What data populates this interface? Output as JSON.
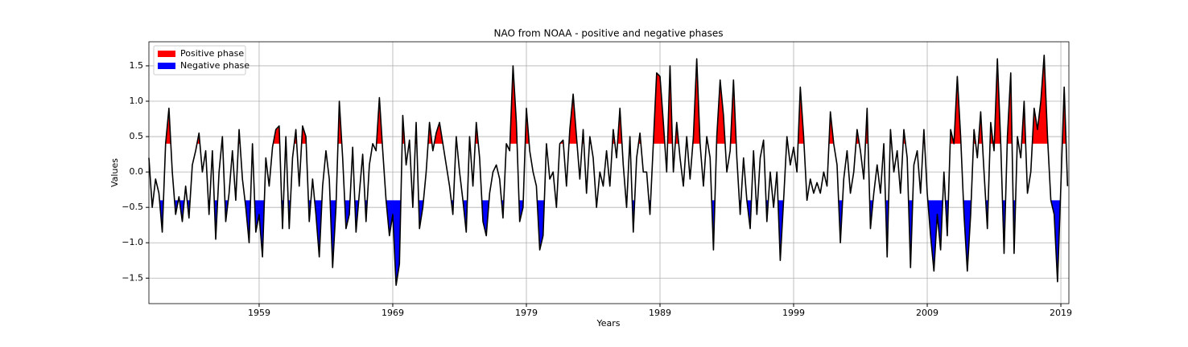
{
  "chart_data": {
    "type": "line",
    "title": "NAO from NOAA - positive and negative phases",
    "x_label": "Years",
    "y_label": "Values",
    "line_color": "#000000",
    "grid": true,
    "legend_loc": "upper left",
    "legend": [
      {
        "name": "Positive phase",
        "color": "#ff0000",
        "threshold": 0.4,
        "side": "above"
      },
      {
        "name": "Negative phase",
        "color": "#0000ff",
        "threshold": -0.4,
        "side": "below"
      }
    ],
    "xlim": [
      1950.75,
      2019.6
    ],
    "xticks": [
      1959,
      1969,
      1979,
      1989,
      1999,
      2009,
      2019
    ],
    "ylim": [
      -1.86,
      1.84
    ],
    "yticks": [
      {
        "value": -1.5,
        "label": "−1.5"
      },
      {
        "value": -1.0,
        "label": "−1.0"
      },
      {
        "value": -0.5,
        "label": "−0.5"
      },
      {
        "value": 0.0,
        "label": "0.0"
      },
      {
        "value": 0.5,
        "label": "0.5"
      },
      {
        "value": 1.0,
        "label": "1.0"
      },
      {
        "value": 1.5,
        "label": "1.5"
      }
    ],
    "x": [
      1950.75,
      1951,
      1951.25,
      1951.5,
      1951.75,
      1952,
      1952.25,
      1952.5,
      1952.75,
      1953,
      1953.25,
      1953.5,
      1953.75,
      1954,
      1954.25,
      1954.5,
      1954.75,
      1955,
      1955.25,
      1955.5,
      1955.75,
      1956,
      1956.25,
      1956.5,
      1956.75,
      1957,
      1957.25,
      1957.5,
      1957.75,
      1958,
      1958.25,
      1958.5,
      1958.75,
      1959,
      1959.25,
      1959.5,
      1959.75,
      1960,
      1960.25,
      1960.5,
      1960.75,
      1961,
      1961.25,
      1961.5,
      1961.75,
      1962,
      1962.25,
      1962.5,
      1962.75,
      1963,
      1963.25,
      1963.5,
      1963.75,
      1964,
      1964.25,
      1964.5,
      1964.75,
      1965,
      1965.25,
      1965.5,
      1965.75,
      1966,
      1966.25,
      1966.5,
      1966.75,
      1967,
      1967.25,
      1967.5,
      1967.75,
      1968,
      1968.25,
      1968.5,
      1968.75,
      1969,
      1969.25,
      1969.5,
      1969.75,
      1970,
      1970.25,
      1970.5,
      1970.75,
      1971,
      1971.25,
      1971.5,
      1971.75,
      1972,
      1972.25,
      1972.5,
      1972.75,
      1973,
      1973.25,
      1973.5,
      1973.75,
      1974,
      1974.25,
      1974.5,
      1974.75,
      1975,
      1975.25,
      1975.5,
      1975.75,
      1976,
      1976.25,
      1976.5,
      1976.75,
      1977,
      1977.25,
      1977.5,
      1977.75,
      1978,
      1978.25,
      1978.5,
      1978.75,
      1979,
      1979.25,
      1979.5,
      1979.75,
      1980,
      1980.25,
      1980.5,
      1980.75,
      1981,
      1981.25,
      1981.5,
      1981.75,
      1982,
      1982.25,
      1982.5,
      1982.75,
      1983,
      1983.25,
      1983.5,
      1983.75,
      1984,
      1984.25,
      1984.5,
      1984.75,
      1985,
      1985.25,
      1985.5,
      1985.75,
      1986,
      1986.25,
      1986.5,
      1986.75,
      1987,
      1987.25,
      1987.5,
      1987.75,
      1988,
      1988.25,
      1988.5,
      1988.75,
      1989,
      1989.25,
      1989.5,
      1989.75,
      1990,
      1990.25,
      1990.5,
      1990.75,
      1991,
      1991.25,
      1991.5,
      1991.75,
      1992,
      1992.25,
      1992.5,
      1992.75,
      1993,
      1993.25,
      1993.5,
      1993.75,
      1994,
      1994.25,
      1994.5,
      1994.75,
      1995,
      1995.25,
      1995.5,
      1995.75,
      1996,
      1996.25,
      1996.5,
      1996.75,
      1997,
      1997.25,
      1997.5,
      1997.75,
      1998,
      1998.25,
      1998.5,
      1998.75,
      1999,
      1999.25,
      1999.5,
      1999.75,
      2000,
      2000.25,
      2000.5,
      2000.75,
      2001,
      2001.25,
      2001.5,
      2001.75,
      2002,
      2002.25,
      2002.5,
      2002.75,
      2003,
      2003.25,
      2003.5,
      2003.75,
      2004,
      2004.25,
      2004.5,
      2004.75,
      2005,
      2005.25,
      2005.5,
      2005.75,
      2006,
      2006.25,
      2006.5,
      2006.75,
      2007,
      2007.25,
      2007.5,
      2007.75,
      2008,
      2008.25,
      2008.5,
      2008.75,
      2009,
      2009.25,
      2009.5,
      2009.75,
      2010,
      2010.25,
      2010.5,
      2010.75,
      2011,
      2011.25,
      2011.5,
      2011.75,
      2012,
      2012.25,
      2012.5,
      2012.75,
      2013,
      2013.25,
      2013.5,
      2013.75,
      2014,
      2014.25,
      2014.5,
      2014.75,
      2015,
      2015.25,
      2015.5,
      2015.75,
      2016,
      2016.25,
      2016.5,
      2016.75,
      2017,
      2017.25,
      2017.5,
      2017.75,
      2018,
      2018.25,
      2018.5,
      2018.75,
      2019,
      2019.25,
      2019.5
    ],
    "values": [
      0.2,
      -0.5,
      -0.1,
      -0.3,
      -0.85,
      0.4,
      0.9,
      0.0,
      -0.6,
      -0.35,
      -0.7,
      -0.2,
      -0.65,
      0.1,
      0.3,
      0.55,
      0.0,
      0.3,
      -0.6,
      0.3,
      -0.95,
      0.0,
      0.5,
      -0.7,
      -0.3,
      0.3,
      -0.4,
      0.6,
      -0.1,
      -0.5,
      -1.0,
      0.4,
      -0.85,
      -0.6,
      -1.2,
      0.2,
      -0.2,
      0.35,
      0.6,
      0.65,
      -0.8,
      0.5,
      -0.8,
      0.2,
      0.6,
      -0.2,
      0.65,
      0.5,
      -0.7,
      -0.1,
      -0.6,
      -1.2,
      -0.2,
      0.3,
      -0.1,
      -1.35,
      -0.5,
      1.0,
      0.2,
      -0.8,
      -0.6,
      0.35,
      -0.85,
      -0.3,
      0.25,
      -0.7,
      0.1,
      0.4,
      0.3,
      1.05,
      0.3,
      -0.4,
      -0.9,
      -0.6,
      -1.6,
      -1.3,
      0.8,
      0.1,
      0.45,
      -0.5,
      0.7,
      -0.8,
      -0.5,
      0.0,
      0.7,
      0.3,
      0.55,
      0.7,
      0.4,
      0.1,
      -0.2,
      -0.6,
      0.5,
      0.0,
      -0.4,
      -0.85,
      0.5,
      -0.2,
      0.7,
      0.2,
      -0.7,
      -0.9,
      -0.3,
      0.0,
      0.1,
      -0.1,
      -0.65,
      0.4,
      0.3,
      1.5,
      0.7,
      -0.7,
      -0.5,
      0.9,
      0.3,
      0.0,
      -0.2,
      -1.1,
      -0.9,
      0.4,
      -0.1,
      0.0,
      -0.5,
      0.4,
      0.45,
      -0.2,
      0.6,
      1.1,
      0.5,
      -0.1,
      0.6,
      -0.3,
      0.5,
      0.2,
      -0.5,
      0.0,
      -0.2,
      0.3,
      -0.2,
      0.6,
      0.2,
      0.9,
      0.1,
      -0.5,
      0.5,
      -0.85,
      0.2,
      0.55,
      0.0,
      0.0,
      -0.6,
      0.4,
      1.4,
      1.35,
      0.7,
      0.0,
      1.5,
      0.0,
      0.7,
      0.2,
      -0.2,
      0.5,
      -0.1,
      0.5,
      1.6,
      0.4,
      -0.2,
      0.5,
      0.2,
      -1.1,
      0.5,
      1.3,
      0.8,
      0.0,
      0.3,
      1.3,
      0.2,
      -0.6,
      0.2,
      -0.4,
      -0.8,
      0.3,
      -0.6,
      0.2,
      0.45,
      -0.7,
      0.0,
      -0.5,
      0.0,
      -1.25,
      -0.4,
      0.5,
      0.1,
      0.35,
      0.0,
      1.2,
      0.5,
      -0.4,
      -0.1,
      -0.3,
      -0.15,
      -0.3,
      0.0,
      -0.2,
      0.85,
      0.4,
      0.1,
      -1.0,
      -0.1,
      0.3,
      -0.3,
      0.0,
      0.6,
      0.3,
      -0.1,
      0.9,
      -0.8,
      -0.3,
      0.1,
      -0.3,
      0.4,
      -1.2,
      0.6,
      0.0,
      0.3,
      -0.3,
      0.6,
      0.2,
      -1.35,
      0.1,
      0.3,
      -0.3,
      0.6,
      -0.3,
      -0.9,
      -1.4,
      -0.6,
      -1.1,
      0.0,
      -0.9,
      0.6,
      0.4,
      1.35,
      0.5,
      -0.6,
      -1.4,
      -0.6,
      0.6,
      0.2,
      0.85,
      0.0,
      -0.8,
      0.7,
      0.3,
      1.6,
      0.4,
      -1.15,
      0.5,
      1.4,
      -1.15,
      0.5,
      0.2,
      1.0,
      -0.3,
      0.0,
      0.9,
      0.6,
      1.0,
      1.65,
      0.5,
      -0.4,
      -0.6,
      -1.55,
      -0.2,
      1.2,
      -0.2
    ]
  }
}
